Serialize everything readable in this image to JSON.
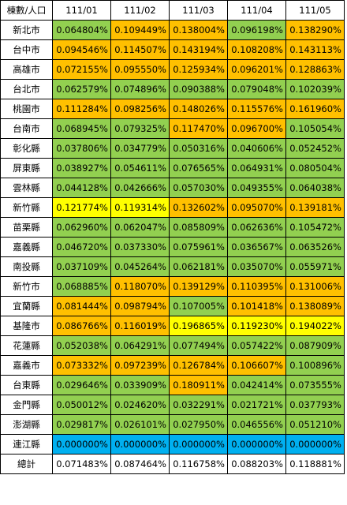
{
  "table": {
    "corner_label": "棟數/人口",
    "columns": [
      "111/01",
      "111/02",
      "111/03",
      "111/04",
      "111/05"
    ],
    "rows": [
      {
        "name": "新北市",
        "values": [
          "0.064804%",
          "0.109449%",
          "0.138004%",
          "0.096198%",
          "0.138290%"
        ],
        "colors": [
          "g",
          "o",
          "o",
          "g",
          "o"
        ]
      },
      {
        "name": "台中市",
        "values": [
          "0.094546%",
          "0.114507%",
          "0.143194%",
          "0.108208%",
          "0.143113%"
        ],
        "colors": [
          "o",
          "o",
          "o",
          "o",
          "o"
        ]
      },
      {
        "name": "高雄市",
        "values": [
          "0.072155%",
          "0.095550%",
          "0.125934%",
          "0.096201%",
          "0.128863%"
        ],
        "colors": [
          "o",
          "o",
          "o",
          "o",
          "o"
        ]
      },
      {
        "name": "台北市",
        "values": [
          "0.062579%",
          "0.074896%",
          "0.090388%",
          "0.079048%",
          "0.102039%"
        ],
        "colors": [
          "g",
          "g",
          "g",
          "g",
          "g"
        ]
      },
      {
        "name": "桃園市",
        "values": [
          "0.111284%",
          "0.098256%",
          "0.148026%",
          "0.115576%",
          "0.161960%"
        ],
        "colors": [
          "o",
          "o",
          "o",
          "o",
          "o"
        ]
      },
      {
        "name": "台南市",
        "values": [
          "0.068945%",
          "0.079325%",
          "0.117470%",
          "0.096700%",
          "0.105054%"
        ],
        "colors": [
          "g",
          "g",
          "o",
          "o",
          "g"
        ]
      },
      {
        "name": "彰化縣",
        "values": [
          "0.037806%",
          "0.034779%",
          "0.050316%",
          "0.040606%",
          "0.052452%"
        ],
        "colors": [
          "g",
          "g",
          "g",
          "g",
          "g"
        ]
      },
      {
        "name": "屏東縣",
        "values": [
          "0.038927%",
          "0.054611%",
          "0.076565%",
          "0.064931%",
          "0.080504%"
        ],
        "colors": [
          "g",
          "g",
          "g",
          "g",
          "g"
        ]
      },
      {
        "name": "雲林縣",
        "values": [
          "0.044128%",
          "0.042666%",
          "0.057030%",
          "0.049355%",
          "0.064038%"
        ],
        "colors": [
          "g",
          "g",
          "g",
          "g",
          "g"
        ]
      },
      {
        "name": "新竹縣",
        "values": [
          "0.121774%",
          "0.119314%",
          "0.132602%",
          "0.095070%",
          "0.139181%"
        ],
        "colors": [
          "y",
          "y",
          "o",
          "o",
          "o"
        ]
      },
      {
        "name": "苗栗縣",
        "values": [
          "0.062960%",
          "0.062047%",
          "0.085809%",
          "0.062636%",
          "0.105472%"
        ],
        "colors": [
          "g",
          "g",
          "g",
          "g",
          "g"
        ]
      },
      {
        "name": "嘉義縣",
        "values": [
          "0.046720%",
          "0.037330%",
          "0.075961%",
          "0.036567%",
          "0.063526%"
        ],
        "colors": [
          "g",
          "g",
          "g",
          "g",
          "g"
        ]
      },
      {
        "name": "南投縣",
        "values": [
          "0.037109%",
          "0.045264%",
          "0.062181%",
          "0.035070%",
          "0.055971%"
        ],
        "colors": [
          "g",
          "g",
          "g",
          "g",
          "g"
        ]
      },
      {
        "name": "新竹市",
        "values": [
          "0.068885%",
          "0.118070%",
          "0.139129%",
          "0.110395%",
          "0.131006%"
        ],
        "colors": [
          "g",
          "o",
          "o",
          "o",
          "o"
        ]
      },
      {
        "name": "宜蘭縣",
        "values": [
          "0.081444%",
          "0.098794%",
          "0.107005%",
          "0.101418%",
          "0.138089%"
        ],
        "colors": [
          "o",
          "o",
          "g",
          "o",
          "o"
        ]
      },
      {
        "name": "基隆市",
        "values": [
          "0.086766%",
          "0.116019%",
          "0.196865%",
          "0.119230%",
          "0.194022%"
        ],
        "colors": [
          "o",
          "o",
          "y",
          "y",
          "y"
        ]
      },
      {
        "name": "花蓮縣",
        "values": [
          "0.052038%",
          "0.064291%",
          "0.077494%",
          "0.057422%",
          "0.087909%"
        ],
        "colors": [
          "g",
          "g",
          "g",
          "g",
          "g"
        ]
      },
      {
        "name": "嘉義市",
        "values": [
          "0.073332%",
          "0.097239%",
          "0.126784%",
          "0.106607%",
          "0.100896%"
        ],
        "colors": [
          "o",
          "o",
          "o",
          "o",
          "g"
        ]
      },
      {
        "name": "台東縣",
        "values": [
          "0.029646%",
          "0.033909%",
          "0.180911%",
          "0.042414%",
          "0.073555%"
        ],
        "colors": [
          "g",
          "g",
          "o",
          "g",
          "g"
        ]
      },
      {
        "name": "金門縣",
        "values": [
          "0.050012%",
          "0.024620%",
          "0.032291%",
          "0.021721%",
          "0.037793%"
        ],
        "colors": [
          "g",
          "g",
          "g",
          "g",
          "g"
        ]
      },
      {
        "name": "澎湖縣",
        "values": [
          "0.029817%",
          "0.026101%",
          "0.027950%",
          "0.046556%",
          "0.051210%"
        ],
        "colors": [
          "g",
          "g",
          "g",
          "g",
          "g"
        ]
      },
      {
        "name": "連江縣",
        "values": [
          "0.000000%",
          "0.000000%",
          "0.000000%",
          "0.000000%",
          "0.000000%"
        ],
        "colors": [
          "b",
          "b",
          "b",
          "b",
          "b"
        ]
      }
    ],
    "total": {
      "name": "總計",
      "values": [
        "0.071483%",
        "0.087464%",
        "0.116758%",
        "0.088203%",
        "0.118881%"
      ],
      "colors": [
        "w",
        "w",
        "w",
        "w",
        "w"
      ]
    }
  },
  "colors": {
    "g": "#92d050",
    "o": "#ffc000",
    "y": "#ffff00",
    "b": "#00b0f0",
    "w": "#ffffff"
  }
}
